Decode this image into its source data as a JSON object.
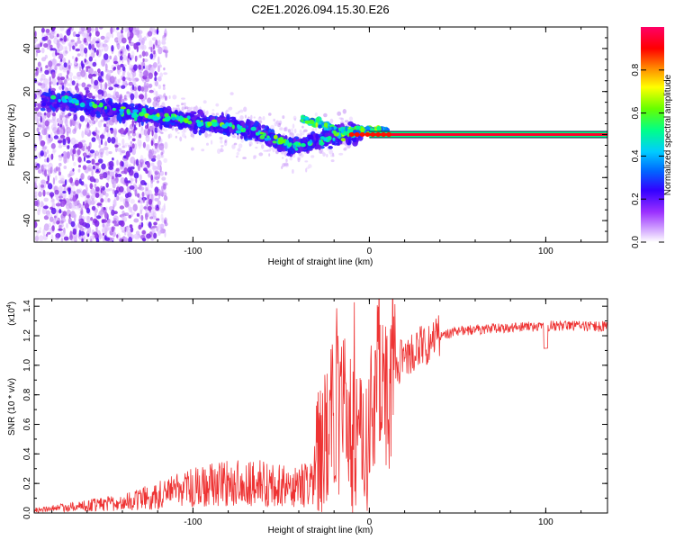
{
  "title": "C2E1.2026.094.15.30.E26",
  "chart_data": [
    {
      "type": "heatmap",
      "xlabel": "Height of straight line (km)",
      "ylabel": "Frequency (Hz)",
      "xlim": [
        -190,
        135
      ],
      "ylim": [
        -50,
        50
      ],
      "xticks": [
        -100,
        0,
        100
      ],
      "xtick_labels": [
        "-100",
        "0",
        "100"
      ],
      "yticks": [
        -40,
        -20,
        0,
        20,
        40
      ],
      "ytick_labels": [
        "-40",
        "-20",
        "0",
        "20",
        "40"
      ],
      "colorbar": {
        "label": "Normalized spectral amplitude",
        "range": [
          0,
          1
        ],
        "ticks": [
          0.0,
          0.2,
          0.4,
          0.6,
          0.8
        ],
        "tick_labels": [
          "0.0",
          "0.2",
          "0.4",
          "0.6",
          "0.8"
        ]
      },
      "features": {
        "carrier_line": {
          "frequency_hz": 0,
          "x_start_km": 0,
          "x_end_km": 135
        },
        "scatter_ridge": [
          {
            "x": -172,
            "f": 16
          },
          {
            "x": -150,
            "f": 12
          },
          {
            "x": -125,
            "f": 9
          },
          {
            "x": -100,
            "f": 6
          },
          {
            "x": -80,
            "f": 4
          },
          {
            "x": -65,
            "f": 1
          },
          {
            "x": -55,
            "f": -2
          },
          {
            "x": -45,
            "f": -5
          },
          {
            "x": -35,
            "f": -4
          },
          {
            "x": -25,
            "f": -2
          },
          {
            "x": -15,
            "f": 0
          },
          {
            "x": -5,
            "f": 1
          },
          {
            "x": 0,
            "f": 1
          },
          {
            "x": 5,
            "f": 2
          }
        ]
      }
    },
    {
      "type": "line",
      "xlabel": "Height of straight line (km)",
      "ylabel": "SNR (10 * v/v)",
      "yscale_label": "(x10",
      "yscale_exp": "4",
      "yscale_close": ")",
      "xlim": [
        -190,
        135
      ],
      "ylim": [
        0,
        1.45
      ],
      "xticks": [
        -100,
        0,
        100
      ],
      "xtick_labels": [
        "-100",
        "0",
        "100"
      ],
      "yticks": [
        0.0,
        0.2,
        0.4,
        0.6,
        0.8,
        1.0,
        1.2,
        1.4
      ],
      "ytick_labels": [
        "0.0",
        "0.2",
        "0.4",
        "0.6",
        "0.8",
        "1.0",
        "1.2",
        "1.4"
      ],
      "series": [
        {
          "name": "SNR",
          "color": "#ee3333",
          "x": [
            -190,
            -160,
            -140,
            -120,
            -100,
            -80,
            -60,
            -45,
            -32,
            -25,
            -18,
            -12,
            -8,
            -2,
            5,
            10,
            15,
            25,
            35,
            50,
            70,
            90,
            110,
            135
          ],
          "y": [
            0.02,
            0.05,
            0.07,
            0.12,
            0.17,
            0.2,
            0.2,
            0.18,
            0.2,
            0.6,
            0.65,
            0.7,
            0.45,
            0.5,
            0.9,
            0.75,
            1.0,
            1.08,
            1.18,
            1.23,
            1.25,
            1.26,
            1.27,
            1.26
          ]
        }
      ]
    }
  ],
  "colors": {
    "colormap": [
      "#ffffff",
      "#d9b3ff",
      "#8a2be2",
      "#3300ff",
      "#0066ff",
      "#00ccff",
      "#00ff88",
      "#66ff00",
      "#ffff00",
      "#ff8800",
      "#ff0000",
      "#ff0066"
    ],
    "line": "#ee3333"
  }
}
